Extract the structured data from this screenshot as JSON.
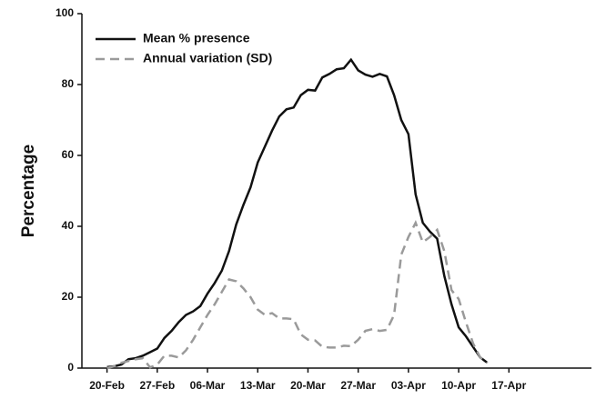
{
  "chart_data": {
    "type": "line",
    "ylabel": "Percentage",
    "x": [
      0,
      1,
      2,
      3,
      4,
      5,
      6,
      7,
      8,
      9,
      10,
      11,
      12,
      13,
      14,
      15,
      16,
      17,
      18,
      19,
      20,
      21,
      22,
      23,
      24,
      25,
      26,
      27,
      28,
      29,
      30,
      31,
      32,
      33,
      34,
      35,
      36,
      37,
      38,
      39,
      40,
      41,
      42,
      43,
      44,
      45,
      46,
      47,
      48,
      49,
      50,
      51,
      52,
      53
    ],
    "series": [
      {
        "name": "Mean % presence",
        "color": "#111111",
        "dash": false,
        "values": [
          0.3,
          0.5,
          1,
          2.5,
          2.8,
          3.5,
          4.5,
          5.5,
          8.5,
          10.5,
          13,
          15,
          16,
          17.5,
          21,
          24,
          27.5,
          33,
          40.5,
          46,
          51,
          58,
          62.5,
          67,
          71,
          73,
          73.5,
          77,
          78.5,
          78.3,
          82,
          83,
          84.3,
          84.6,
          87,
          84,
          82.8,
          82.2,
          83,
          82.3,
          77,
          70,
          66,
          49,
          41,
          38.5,
          36.5,
          26,
          18,
          11.5,
          9,
          6,
          3,
          1.5
        ]
      },
      {
        "name": "Annual variation (SD)",
        "color": "#9a9a9a",
        "dash": true,
        "values": [
          0,
          0.5,
          1.5,
          2,
          2.5,
          2.8,
          0.2,
          1,
          3.5,
          3.5,
          3,
          5,
          8,
          11.5,
          15,
          18,
          21.5,
          25,
          24.5,
          22.5,
          20,
          16.5,
          15,
          15.5,
          14,
          14,
          13.8,
          9.5,
          8,
          7.8,
          6,
          5.8,
          5.8,
          6.3,
          6.2,
          8,
          10.5,
          11,
          10.5,
          10.8,
          15,
          32,
          37,
          41,
          35.5,
          37,
          39,
          33,
          22,
          19.5,
          13,
          7,
          3,
          1.5
        ]
      }
    ],
    "xlim": [
      -3.5,
      67.5
    ],
    "xticks": [
      {
        "value": 0,
        "label": "20-Feb"
      },
      {
        "value": 7,
        "label": "27-Feb"
      },
      {
        "value": 14,
        "label": "06-Mar"
      },
      {
        "value": 21,
        "label": "13-Mar"
      },
      {
        "value": 28,
        "label": "20-Mar"
      },
      {
        "value": 35,
        "label": "27-Mar"
      },
      {
        "value": 42,
        "label": "03-Apr"
      },
      {
        "value": 49,
        "label": "10-Apr"
      },
      {
        "value": 56,
        "label": "17-Apr"
      }
    ],
    "ylim": [
      0,
      100
    ],
    "yticks": [
      0,
      20,
      40,
      60,
      80,
      100
    ],
    "legend": "upper left"
  }
}
